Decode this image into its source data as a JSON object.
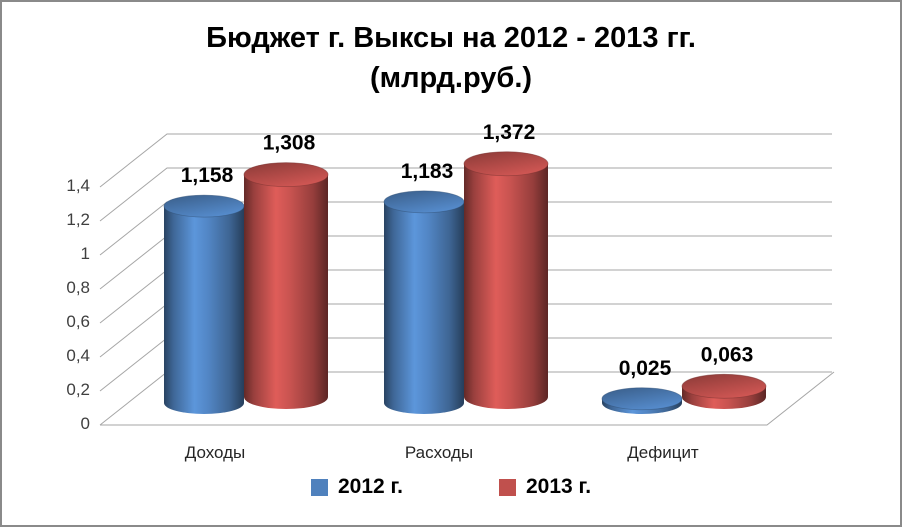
{
  "chart_data": {
    "type": "bar",
    "style": "3d-cylinder",
    "title": "Бюджет г. Выксы на 2012 - 2013 гг. (млрд.руб.)",
    "title_lines": [
      "Бюджет г. Выксы на 2012 - 2013 гг.",
      "(млрд.руб.)"
    ],
    "categories": [
      "Доходы",
      "Расходы",
      "Дефицит"
    ],
    "series": [
      {
        "name": "2012 г.",
        "color": "#4F81BD",
        "values": [
          1.158,
          1.183,
          0.025
        ],
        "value_labels": [
          "1,158",
          "1,183",
          "0,025"
        ]
      },
      {
        "name": "2013 г.",
        "color": "#C0504D",
        "values": [
          1.308,
          1.372,
          0.063
        ],
        "value_labels": [
          "1,308",
          "1,372",
          "0,063"
        ]
      }
    ],
    "y_axis": {
      "min": 0,
      "max": 1.4,
      "step": 0.2,
      "tick_labels": [
        "0",
        "0,2",
        "0,4",
        "0,6",
        "0,8",
        "1",
        "1,2",
        "1,4"
      ]
    },
    "legend": {
      "position": "bottom",
      "entries": [
        "2012 г.",
        "2013 г."
      ]
    },
    "grid": true,
    "colors": {
      "gridline": "#A6A6A6",
      "axis_text": "#3F3F3F",
      "category_text": "#262626",
      "data_label_text": "#000000",
      "frame_border": "#8A8A8A",
      "background": "#FFFFFF"
    }
  }
}
